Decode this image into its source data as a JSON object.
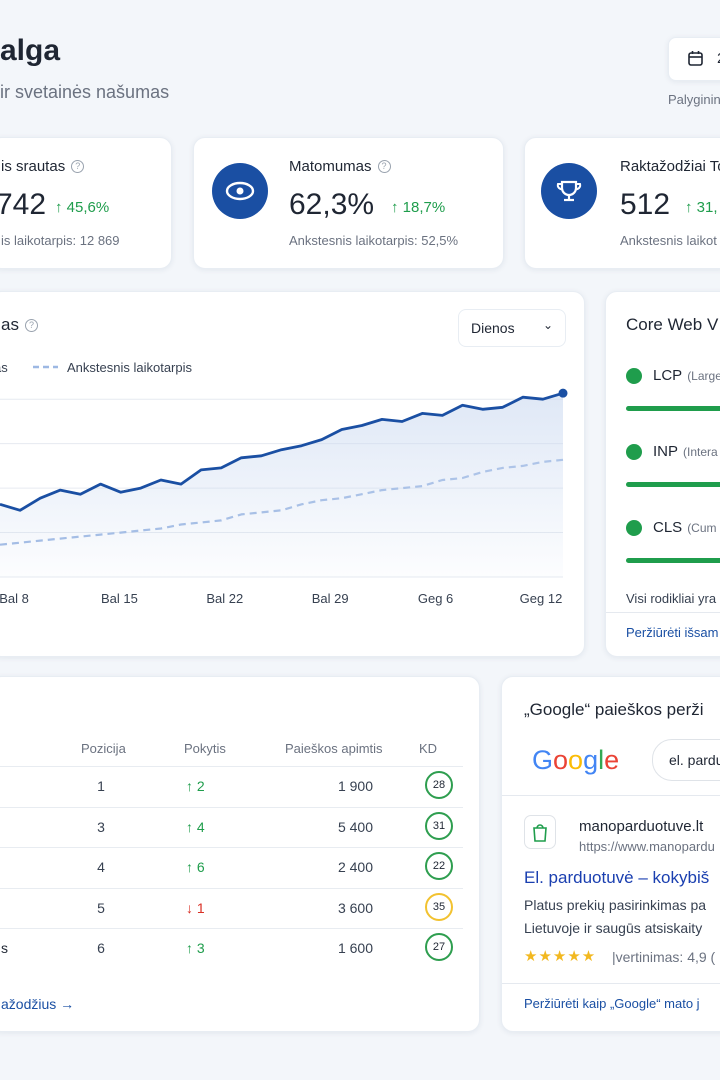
{
  "header": {
    "title": "alga",
    "subtitle": "ir svetainės našumas",
    "date_button": "2",
    "compare_note": "Palyginin"
  },
  "stats": [
    {
      "label": "is srautas",
      "value": "742",
      "change": "45,6%",
      "previous": "is laikotarpis: 12 869"
    },
    {
      "label": "Matomumas",
      "value": "62,3%",
      "change": "18,7%",
      "previous": "Ankstesnis laikotarpis: 52,5%"
    },
    {
      "label": "Raktažodžiai To",
      "value": "512",
      "change": "31,",
      "previous": "Ankstesnis laikot"
    }
  ],
  "chart_data": {
    "type": "line",
    "title": "as",
    "dropdown": "Dienos",
    "x_labels": [
      "Bal 8",
      "Bal 15",
      "Bal 22",
      "Bal 29",
      "Geg 6",
      "Geg 12"
    ],
    "ylim": [
      0,
      100
    ],
    "grid": true,
    "gridlines": [
      0,
      22,
      44,
      66,
      88
    ],
    "series": [
      {
        "name": "as",
        "color": "#1a4fa3",
        "style": "solid",
        "values": [
          36,
          33,
          39,
          43,
          41,
          46,
          42,
          44,
          48,
          46,
          53,
          54,
          59,
          60,
          63,
          65,
          68,
          73,
          75,
          78,
          77,
          81,
          80,
          85,
          83,
          84,
          89,
          88,
          91
        ]
      },
      {
        "name": "Ankstesnis laikotarpis",
        "color": "#9db8e3",
        "style": "dashed",
        "values": [
          16,
          17,
          18,
          19,
          20,
          21,
          22,
          23,
          24,
          26,
          27,
          28,
          31,
          32,
          33,
          36,
          38,
          39,
          41,
          43,
          44,
          45,
          48,
          49,
          52,
          54,
          55,
          57,
          58
        ]
      }
    ]
  },
  "vitals": {
    "title": "Core Web V",
    "items": [
      {
        "name": "LCP",
        "desc": "(Large"
      },
      {
        "name": "INP",
        "desc": "(Intera"
      },
      {
        "name": "CLS",
        "desc": "(Cum"
      }
    ],
    "note": "Visi rodikliai yra",
    "link": "Peržiūrėti išsam"
  },
  "table": {
    "headers": [
      "Pozicija",
      "Pokytis",
      "Paieškos apimtis",
      "KD"
    ],
    "rows": [
      {
        "keyword": null,
        "position": "1",
        "change": "2",
        "direction": "up",
        "volume": "1 900",
        "kd": "28",
        "kd_color": "#2e9e4f"
      },
      {
        "keyword": null,
        "position": "3",
        "change": "4",
        "direction": "up",
        "volume": "5 400",
        "kd": "31",
        "kd_color": "#2e9e4f"
      },
      {
        "keyword": null,
        "position": "4",
        "change": "6",
        "direction": "up",
        "volume": "2 400",
        "kd": "22",
        "kd_color": "#2e9e4f"
      },
      {
        "keyword": null,
        "position": "5",
        "change": "1",
        "direction": "down",
        "volume": "3 600",
        "kd": "35",
        "kd_color": "#f2c230"
      },
      {
        "keyword": "s",
        "position": "6",
        "change": "3",
        "direction": "up",
        "volume": "1 600",
        "kd": "27",
        "kd_color": "#2e9e4f"
      }
    ],
    "link": "ažodžius"
  },
  "google_preview": {
    "title": "„Google“ paieškos perži",
    "logo": "Google",
    "query": "el. pardu",
    "site": "manoparduotuve.lt",
    "url": "https://www.manopardu",
    "headline": "El. parduotuvė – kokybiš",
    "description": [
      "Platus prekių pasirinkimas pa",
      "Lietuvoje ir saugūs atsiskaity"
    ],
    "rating": "|vertinimas: 4,9 (",
    "link": "Peržiūrėti kaip „Google“ mato j"
  }
}
